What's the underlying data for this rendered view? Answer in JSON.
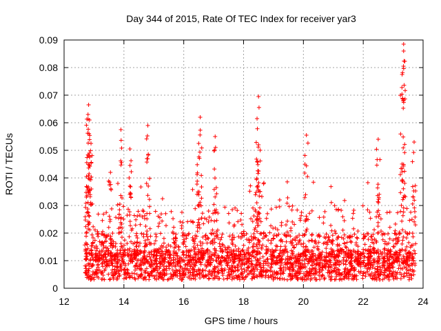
{
  "chart_data": {
    "type": "scatter",
    "title": "Day 344 of 2015, Rate Of TEC Index for receiver yar3",
    "xlabel": "GPS time / hours",
    "ylabel": "ROTI / TECUs",
    "xlim": [
      12,
      24
    ],
    "ylim": [
      0,
      0.09
    ],
    "x_ticks": [
      12,
      14,
      16,
      18,
      20,
      22,
      24
    ],
    "x_tick_labels": [
      "12",
      "14",
      "16",
      "18",
      "20",
      "22",
      "24"
    ],
    "y_ticks": [
      0,
      0.01,
      0.02,
      0.03,
      0.04,
      0.05,
      0.06,
      0.07,
      0.08,
      0.09
    ],
    "y_tick_labels": [
      "0",
      "0.01",
      "0.02",
      "0.03",
      "0.04",
      "0.05",
      "0.06",
      "0.07",
      "0.08",
      "0.09"
    ],
    "grid": true,
    "marker": "+",
    "series_color": "#ff0000",
    "series": [
      {
        "name": "yar3",
        "x_range": [
          12.7,
          23.75
        ],
        "notable_points": [
          {
            "x": 12.82,
            "y": 0.0665
          },
          {
            "x": 12.8,
            "y": 0.063
          },
          {
            "x": 12.85,
            "y": 0.061
          },
          {
            "x": 12.9,
            "y": 0.0525
          },
          {
            "x": 12.75,
            "y": 0.0405
          },
          {
            "x": 13.55,
            "y": 0.042
          },
          {
            "x": 13.9,
            "y": 0.0575
          },
          {
            "x": 14.2,
            "y": 0.0505
          },
          {
            "x": 14.8,
            "y": 0.059
          },
          {
            "x": 16.55,
            "y": 0.062
          },
          {
            "x": 16.5,
            "y": 0.0525
          },
          {
            "x": 17.05,
            "y": 0.055
          },
          {
            "x": 18.5,
            "y": 0.0695
          },
          {
            "x": 18.45,
            "y": 0.0615
          },
          {
            "x": 18.5,
            "y": 0.052
          },
          {
            "x": 20.1,
            "y": 0.0555
          },
          {
            "x": 22.5,
            "y": 0.054
          },
          {
            "x": 23.35,
            "y": 0.0885
          },
          {
            "x": 23.35,
            "y": 0.086
          },
          {
            "x": 23.3,
            "y": 0.0775
          },
          {
            "x": 23.7,
            "y": 0.053
          }
        ]
      }
    ]
  }
}
